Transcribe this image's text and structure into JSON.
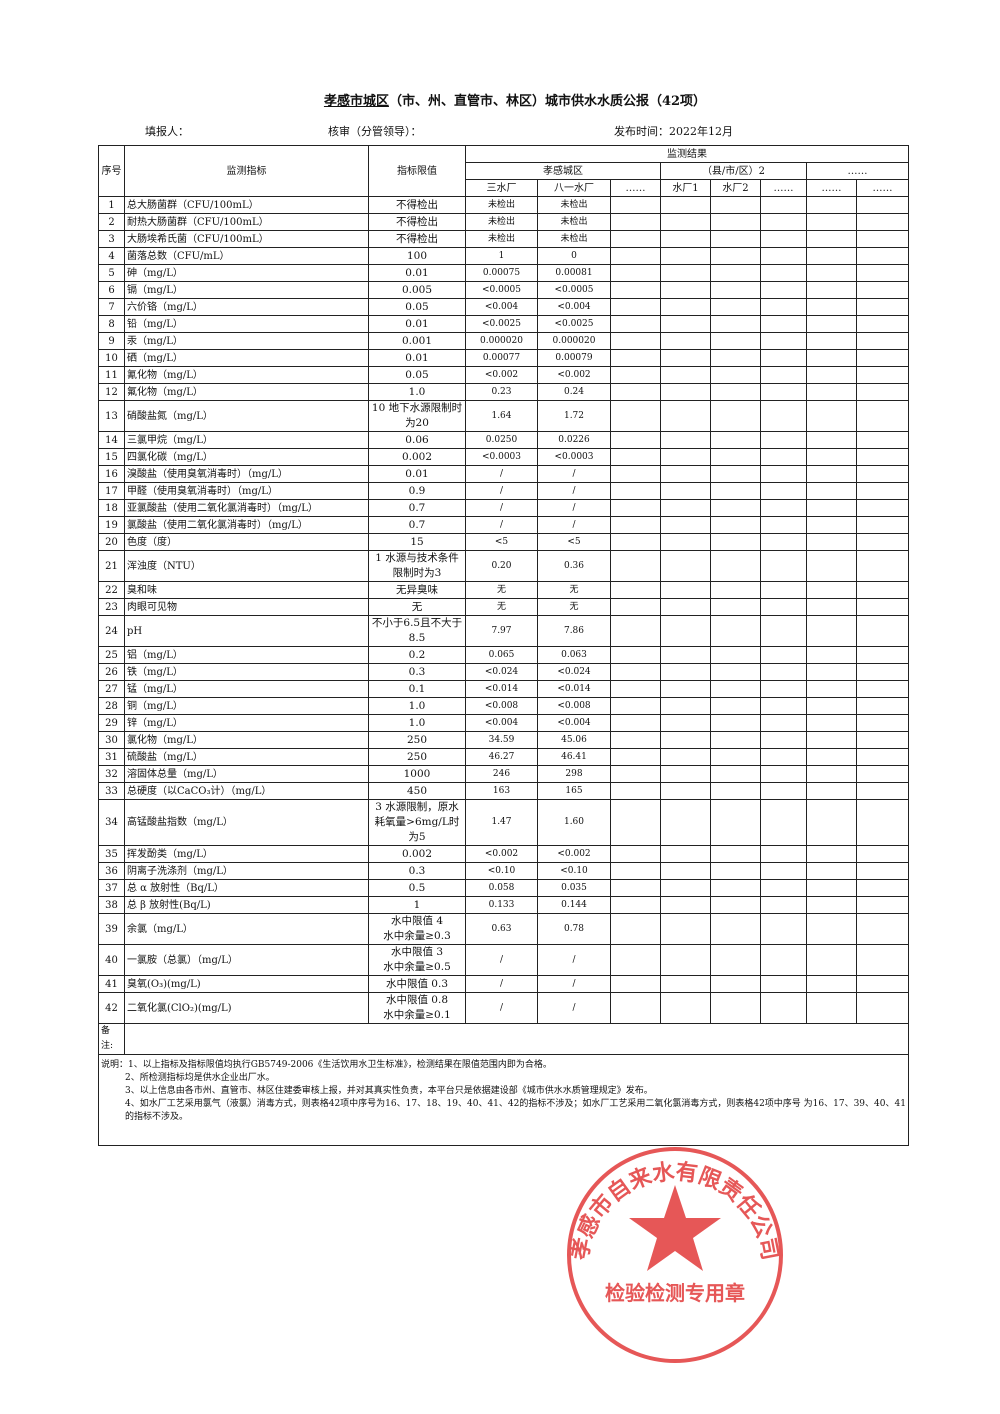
{
  "header": {
    "title_city": "孝感市城区",
    "title_rest": "（市、州、直管市、林区）城市供水水质公报（42项）",
    "filler": "填报人：",
    "reviewer": "核审（分管领导）：",
    "publish": "发布时间：2022年12月"
  },
  "table": {
    "headers": {
      "index": "序号",
      "indicator": "监测指标",
      "limit": "指标限值",
      "group": "监测结果",
      "sites": [
        "孝感城区",
        "（县/市/区）2",
        "……"
      ],
      "plants": [
        "三水厂",
        "八一水厂",
        "……",
        "水厂1",
        "水厂2",
        "……",
        "……",
        "……"
      ]
    },
    "rows": [
      [
        1,
        "总大肠菌群（CFU/100mL）",
        "不得检出",
        "未检出",
        "未检出"
      ],
      [
        2,
        "耐热大肠菌群（CFU/100mL）",
        "不得检出",
        "未检出",
        "未检出"
      ],
      [
        3,
        "大肠埃希氏菌（CFU/100mL）",
        "不得检出",
        "未检出",
        "未检出"
      ],
      [
        4,
        "菌落总数（CFU/mL）",
        "100",
        "1",
        "0"
      ],
      [
        5,
        "砷（mg/L）",
        "0.01",
        "0.00075",
        "0.00081"
      ],
      [
        6,
        "镉（mg/L）",
        "0.005",
        "<0.0005",
        "<0.0005"
      ],
      [
        7,
        "六价铬（mg/L）",
        "0.05",
        "<0.004",
        "<0.004"
      ],
      [
        8,
        "铅（mg/L）",
        "0.01",
        "<0.0025",
        "<0.0025"
      ],
      [
        9,
        "汞（mg/L）",
        "0.001",
        "0.000020",
        "0.000020"
      ],
      [
        10,
        "硒（mg/L）",
        "0.01",
        "0.00077",
        "0.00079"
      ],
      [
        11,
        "氰化物（mg/L）",
        "0.05",
        "<0.002",
        "<0.002"
      ],
      [
        12,
        "氟化物（mg/L）",
        "1.0",
        "0.23",
        "0.24"
      ],
      [
        13,
        "硝酸盐氮（mg/L）",
        "10 地下水源限制时为20",
        "1.64",
        "1.72"
      ],
      [
        14,
        "三氯甲烷（mg/L）",
        "0.06",
        "0.0250",
        "0.0226"
      ],
      [
        15,
        "四氯化碳（mg/L）",
        "0.002",
        "<0.0003",
        "<0.0003"
      ],
      [
        16,
        "溴酸盐（使用臭氧消毒时）（mg/L）",
        "0.01",
        "/",
        "/"
      ],
      [
        17,
        "甲醛（使用臭氧消毒时）（mg/L）",
        "0.9",
        "/",
        "/"
      ],
      [
        18,
        "亚氯酸盐（使用二氧化氯消毒时）（mg/L）",
        "0.7",
        "/",
        "/"
      ],
      [
        19,
        "氯酸盐（使用二氧化氯消毒时）（mg/L）",
        "0.7",
        "/",
        "/"
      ],
      [
        20,
        "色度（度）",
        "15",
        "<5",
        "<5"
      ],
      [
        21,
        "浑浊度（NTU）",
        "1 水源与技术条件限制时为3",
        "0.20",
        "0.36"
      ],
      [
        22,
        "臭和味",
        "无异臭味",
        "无",
        "无"
      ],
      [
        23,
        "肉眼可见物",
        "无",
        "无",
        "无"
      ],
      [
        24,
        "pH",
        "不小于6.5且不大于8.5",
        "7.97",
        "7.86"
      ],
      [
        25,
        "铝（mg/L）",
        "0.2",
        "0.065",
        "0.063"
      ],
      [
        26,
        "铁（mg/L）",
        "0.3",
        "<0.024",
        "<0.024"
      ],
      [
        27,
        "锰（mg/L）",
        "0.1",
        "<0.014",
        "<0.014"
      ],
      [
        28,
        "铜（mg/L）",
        "1.0",
        "<0.008",
        "<0.008"
      ],
      [
        29,
        "锌（mg/L）",
        "1.0",
        "<0.004",
        "<0.004"
      ],
      [
        30,
        "氯化物（mg/L）",
        "250",
        "34.59",
        "45.06"
      ],
      [
        31,
        "硫酸盐（mg/L）",
        "250",
        "46.27",
        "46.41"
      ],
      [
        32,
        "溶固体总量（mg/L）",
        "1000",
        "246",
        "298"
      ],
      [
        33,
        "总硬度（以CaCO₃计）（mg/L）",
        "450",
        "163",
        "165"
      ],
      [
        34,
        "高锰酸盐指数（mg/L）",
        "3 水源限制，原水耗氧量>6mg/L时为5",
        "1.47",
        "1.60"
      ],
      [
        35,
        "挥发酚类（mg/L）",
        "0.002",
        "<0.002",
        "<0.002"
      ],
      [
        36,
        "阴离子洗涤剂（mg/L）",
        "0.3",
        "<0.10",
        "<0.10"
      ],
      [
        37,
        "总 α 放射性（Bq/L）",
        "0.5",
        "0.058",
        "0.035"
      ],
      [
        38,
        "总 β 放射性(Bq/L)",
        "1",
        "0.133",
        "0.144"
      ],
      [
        39,
        "余氯（mg/L）",
        "水中限值 4\n水中余量≥0.3",
        "0.63",
        "0.78"
      ],
      [
        40,
        "一氯胺（总氯）（mg/L）",
        "水中限值 3\n水中余量≥0.5",
        "/",
        "/"
      ],
      [
        41,
        "臭氧(O₃)(mg/L)",
        "水中限值 0.3",
        "/",
        "/"
      ],
      [
        42,
        "二氧化氯(ClO₂)(mg/L)",
        "水中限值 0.8\n水中余量≥0.1",
        "/",
        "/"
      ]
    ],
    "remarks_label": "备注:"
  },
  "notes": {
    "label": "说明：",
    "lines": [
      "1、以上指标及指标限值均执行GB5749-2006《生活饮用水卫生标准》，检测结果在限值范围内即为合格。",
      "2、所检测指标均是供水企业出厂水。",
      "3、以上信息由各市州、直管市、林区住建委审核上报，并对其真实性负责，本平台只是依据建设部《城市供水水质管理规定》发布。",
      "4、如水厂工艺采用氯气（液氯）消毒方式，则表格42项中序号为16、17、18、19、40、41、42的指标不涉及；如水厂工艺采用二氧化氯消毒方式，则表格42项中序号 为16、17、39、40、41的指标不涉及。"
    ]
  },
  "seal": {
    "organization": "孝感市自来水有限责任公司",
    "purpose": "检验检测专用章"
  }
}
